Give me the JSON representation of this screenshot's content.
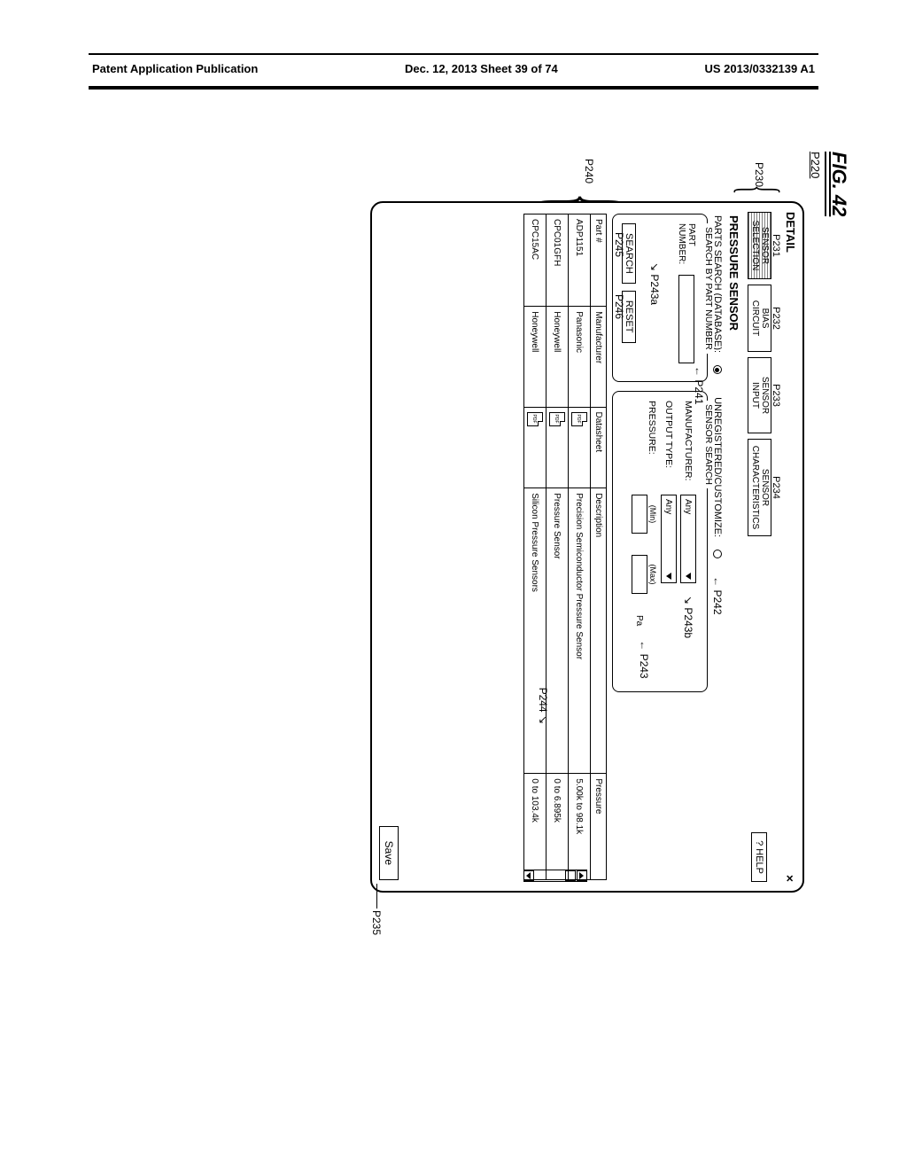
{
  "header": {
    "left": "Patent Application Publication",
    "center": "Dec. 12, 2013  Sheet 39 of 74",
    "right": "US 2013/0332139 A1"
  },
  "figure_label": "FIG. 42",
  "refs": {
    "p220": "P220",
    "p230": "P230",
    "p231": "P231",
    "p232": "P232",
    "p233": "P233",
    "p234": "P234",
    "p235": "P235",
    "p240": "P240",
    "p241": "P241",
    "p242": "P242",
    "p243": "P243",
    "p243a": "P243a",
    "p243b": "P243b",
    "p244": "P244",
    "p245": "P245",
    "p246": "P246"
  },
  "window": {
    "title": "DETAIL",
    "close": "×",
    "tabs": {
      "t1": "SENSOR\nSELECTION",
      "t2": "BIAS CIRCUIT",
      "t3": "SENSOR INPUT",
      "t4": "SENSOR\nCHARACTERISTICS"
    },
    "help": "? HELP",
    "section": "PRESSURE SENSOR",
    "radio": {
      "db": "PARTS SEARCH (DATABASE):",
      "unreg": "UNREGISTERED/CUSTOMIZE:"
    },
    "left_group": {
      "legend": "SEARCH BY PART NUMBER",
      "part_label": "PART\nNUMBER:"
    },
    "right_group": {
      "legend": "SENSOR SEARCH",
      "manu": "MANUFACTURER:",
      "manu_val": "Any",
      "out": "OUTPUT TYPE:",
      "out_val": "Any",
      "press": "PRESSURE:",
      "min": "(Min)",
      "max": "(Max)",
      "unit": "Pa"
    },
    "buttons": {
      "search": "SEARCH",
      "reset": "RESET",
      "save": "Save"
    },
    "table": {
      "cols": [
        "Part #",
        "Manufacturer",
        "Datasheet",
        "Description",
        "Pressure"
      ],
      "rows": [
        [
          "ADP1151",
          "Panasonic",
          "PDF",
          "Precision Semiconductor Pressure Sensor",
          "5.00k to 98.1k"
        ],
        [
          "CPC01GFH",
          "Honeywell",
          "PDF",
          "Pressure Sensor",
          "0 to 6.895k"
        ],
        [
          "CPC15AC",
          "Honeywell",
          "PDF",
          "Silicon Pressure Sensors",
          "0 to 103.4k"
        ]
      ]
    }
  }
}
